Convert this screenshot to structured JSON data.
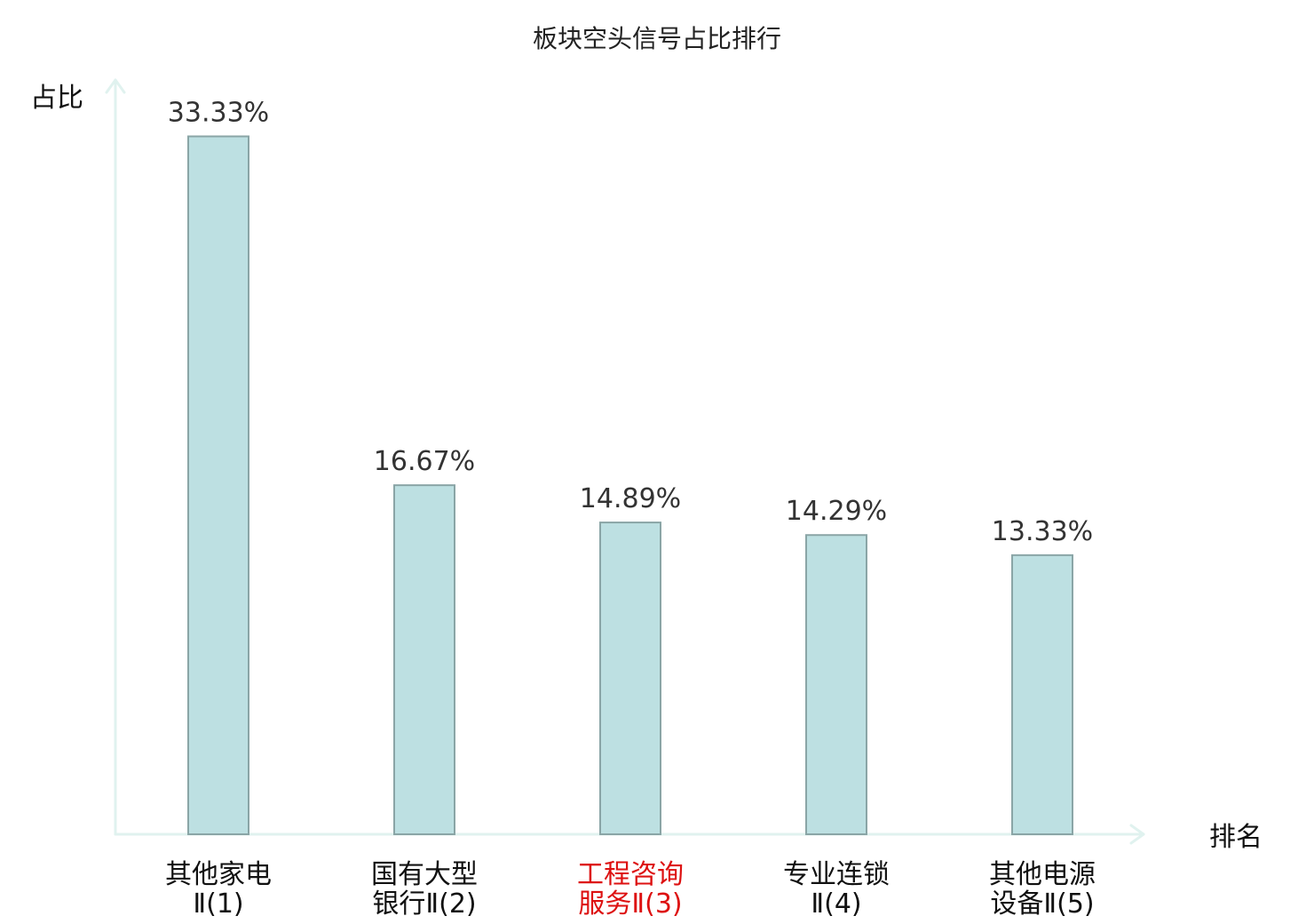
{
  "chart_data": {
    "type": "bar",
    "title": "板块空头信号占比排行",
    "ylabel": "占比",
    "xlabel": "排名",
    "ylim": [
      0,
      35.6
    ],
    "grid": false,
    "categories": [
      [
        "其他家电",
        "Ⅱ(1)"
      ],
      [
        "国有大型",
        "银行Ⅱ(2)"
      ],
      [
        "工程咨询",
        "服务Ⅱ(3)"
      ],
      [
        "专业连锁",
        "Ⅱ(4)"
      ],
      [
        "其他电源",
        "设备Ⅱ(5)"
      ]
    ],
    "values": [
      33.33,
      16.67,
      14.89,
      14.29,
      13.33
    ],
    "value_labels": [
      "33.33%",
      "16.67%",
      "14.89%",
      "14.29%",
      "13.33%"
    ],
    "highlight_index": 2,
    "colors": {
      "bar_fill": "#bde0e2",
      "bar_stroke": "#8aa5a6",
      "axis": "#e0f2ef",
      "highlight_text": "#dd1111",
      "text": "#111111",
      "value_text": "#333333"
    }
  }
}
